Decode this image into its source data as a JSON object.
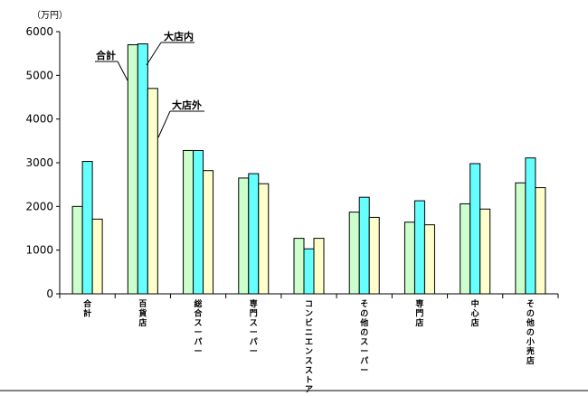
{
  "chart_data": {
    "type": "bar",
    "unit_label": "（万円）",
    "ylim": [
      0,
      6000
    ],
    "y_ticks": [
      "0",
      "1000",
      "2000",
      "3000",
      "4000",
      "5000",
      "6000"
    ],
    "grid": false,
    "legend": "none",
    "categories": [
      "合計",
      "百貨店",
      "総合スーパー",
      "専門スーパー",
      "コンビニエンスストア",
      "その他のスーパー",
      "専門店",
      "中心店",
      "その他の小売店"
    ],
    "series": [
      {
        "name": "合計",
        "color": "#ccffcc",
        "values": [
          2000,
          5700,
          3280,
          2650,
          1270,
          1870,
          1640,
          2060,
          2540
        ]
      },
      {
        "name": "大店内",
        "color": "#66ffff",
        "values": [
          3030,
          5720,
          3280,
          2750,
          1030,
          2210,
          2130,
          2980,
          3110
        ]
      },
      {
        "name": "大店外",
        "color": "#ffffcc",
        "values": [
          1710,
          4700,
          2820,
          2520,
          1270,
          1750,
          1580,
          1940,
          2430
        ]
      }
    ],
    "annotations": [
      "合計",
      "大店内",
      "大店外"
    ]
  }
}
